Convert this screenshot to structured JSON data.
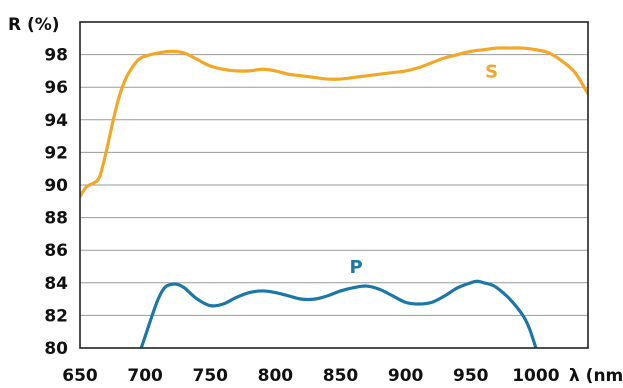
{
  "chart_data": {
    "type": "line",
    "title": "",
    "xlabel": "λ (nm)",
    "ylabel": "R (%)",
    "xlim": [
      650,
      1040
    ],
    "ylim": [
      80,
      100
    ],
    "xticks": [
      650,
      700,
      750,
      800,
      850,
      900,
      950,
      1000
    ],
    "yticks": [
      80,
      82,
      84,
      86,
      88,
      90,
      92,
      94,
      96,
      98
    ],
    "grid": true,
    "legend": "none",
    "series": [
      {
        "name": "S",
        "color": "#f2a727",
        "label_at": [
          966,
          96.6
        ],
        "x": [
          650,
          655,
          660,
          665,
          670,
          675,
          680,
          685,
          690,
          695,
          700,
          710,
          720,
          730,
          740,
          750,
          760,
          770,
          780,
          790,
          800,
          810,
          820,
          830,
          840,
          850,
          860,
          870,
          880,
          890,
          900,
          910,
          920,
          930,
          940,
          950,
          960,
          970,
          980,
          990,
          1000,
          1010,
          1020,
          1030,
          1040
        ],
        "values": [
          89.3,
          89.9,
          90.1,
          90.5,
          92.0,
          93.8,
          95.4,
          96.5,
          97.2,
          97.7,
          97.9,
          98.1,
          98.2,
          98.1,
          97.7,
          97.3,
          97.1,
          97.0,
          97.0,
          97.1,
          97.0,
          96.8,
          96.7,
          96.6,
          96.5,
          96.5,
          96.6,
          96.7,
          96.8,
          96.9,
          97.0,
          97.2,
          97.5,
          97.8,
          98.0,
          98.2,
          98.3,
          98.4,
          98.4,
          98.4,
          98.3,
          98.1,
          97.6,
          96.9,
          95.6
        ]
      },
      {
        "name": "P",
        "color": "#1c77a6",
        "label_at": [
          862,
          84.6
        ],
        "x": [
          697,
          700,
          705,
          710,
          715,
          720,
          725,
          730,
          740,
          750,
          760,
          770,
          780,
          790,
          800,
          810,
          820,
          830,
          840,
          850,
          860,
          870,
          880,
          890,
          900,
          910,
          920,
          930,
          940,
          950,
          955,
          960,
          965,
          970,
          980,
          990,
          995,
          1000
        ],
        "values": [
          80.0,
          80.7,
          81.9,
          83.0,
          83.7,
          83.9,
          83.9,
          83.7,
          83.0,
          82.6,
          82.7,
          83.1,
          83.4,
          83.5,
          83.4,
          83.2,
          83.0,
          83.0,
          83.2,
          83.5,
          83.7,
          83.8,
          83.6,
          83.2,
          82.8,
          82.7,
          82.8,
          83.2,
          83.7,
          84.0,
          84.1,
          84.0,
          83.9,
          83.7,
          83.0,
          82.0,
          81.2,
          80.0
        ]
      }
    ]
  }
}
